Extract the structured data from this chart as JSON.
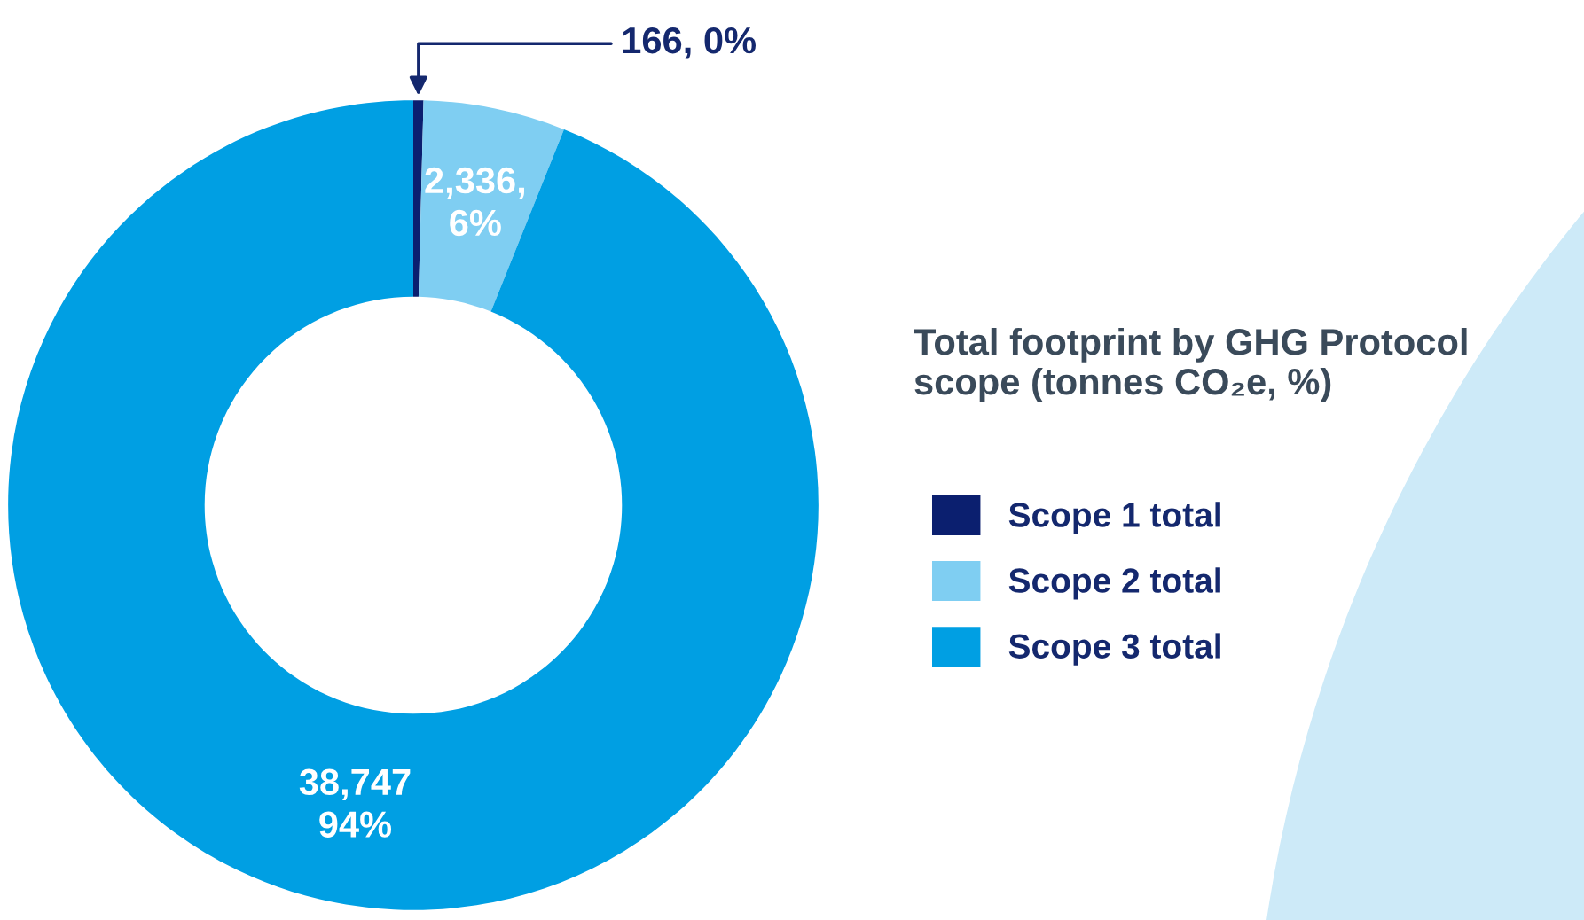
{
  "chart_data": {
    "type": "donut",
    "title": "Total footprint by GHG Protocol scope (tonnes CO₂e, %)",
    "categories": [
      "Scope 1 total",
      "Scope 2 total",
      "Scope 3 total"
    ],
    "values": [
      166,
      2336,
      38747
    ],
    "colors": [
      "#0b1f6f",
      "#7fcef2",
      "#009fe3"
    ],
    "value_labels": [
      "166, 0%",
      "2,336,\n6%",
      "38,747\n94%"
    ],
    "legend": "right"
  }
}
